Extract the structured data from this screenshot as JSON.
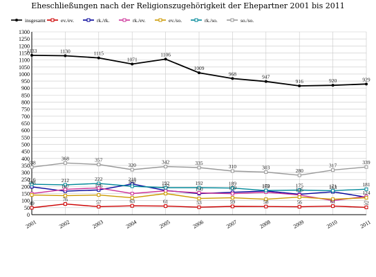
{
  "chart_data": {
    "type": "line",
    "title": "Eheschließungen nach der Religionszugehörigkeit der Ehepartner 2001 bis 2011",
    "xlabel": "",
    "ylabel": "",
    "x": [
      "2001",
      "2002",
      "2003",
      "2004",
      "2005",
      "2006",
      "2007",
      "2008",
      "2009",
      "2010",
      "2011"
    ],
    "ylim": [
      0,
      1300
    ],
    "ytick_step": 50,
    "grid": true,
    "legend_position": "top",
    "series": [
      {
        "name": "insgesamt",
        "color": "#000000",
        "values": [
          1133,
          1130,
          1115,
          1071,
          1106,
          1009,
          968,
          947,
          916,
          920,
          929
        ],
        "labels_shown": true
      },
      {
        "name": "ev./ev.",
        "color": "#cc0000",
        "values": [
          49,
          76,
          57,
          63,
          61,
          53,
          59,
          58,
          56,
          61,
          52
        ],
        "labels_shown": true
      },
      {
        "name": "rk./rk.",
        "color": "#000099",
        "values": [
          198,
          167,
          176,
          218,
          172,
          150,
          159,
          169,
          145,
          163,
          124
        ],
        "labels_shown": true
      },
      {
        "name": "rk./ev.",
        "color": "#cc3399",
        "values": [
          150,
          180,
          190,
          150,
          170,
          155,
          149,
          160,
          140,
          100,
          130
        ],
        "labels_shown": false
      },
      {
        "name": "ev./so.",
        "color": "#cc9900",
        "values": [
          140,
          135,
          140,
          120,
          150,
          115,
          120,
          110,
          125,
          110,
          120
        ],
        "labels_shown": false
      },
      {
        "name": "rk./so.",
        "color": "#008899",
        "values": [
          216,
          212,
          222,
          202,
          192,
          192,
          189,
          172,
          175,
          171,
          181
        ],
        "labels_shown": true
      },
      {
        "name": "so./so.",
        "color": "#999999",
        "values": [
          338,
          368,
          357,
          320,
          342,
          335,
          310,
          303,
          280,
          317,
          339
        ],
        "labels_shown": true
      }
    ]
  }
}
